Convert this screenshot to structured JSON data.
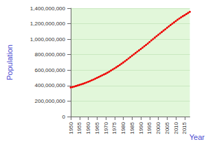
{
  "chart_data": {
    "type": "line",
    "x_label": "Year",
    "y_label": "Population",
    "x": [
      1950,
      1951,
      1952,
      1953,
      1954,
      1955,
      1956,
      1957,
      1958,
      1959,
      1960,
      1961,
      1962,
      1963,
      1964,
      1965,
      1966,
      1967,
      1968,
      1969,
      1970,
      1971,
      1972,
      1973,
      1974,
      1975,
      1976,
      1977,
      1978,
      1979,
      1980,
      1981,
      1982,
      1983,
      1984,
      1985,
      1986,
      1987,
      1988,
      1989,
      1990,
      1991,
      1992,
      1993,
      1994,
      1995,
      1996,
      1997,
      1998,
      1999,
      2000,
      2001,
      2002,
      2003,
      2004,
      2005,
      2006,
      2007,
      2008,
      2009,
      2010,
      2011,
      2012,
      2013,
      2014,
      2015,
      2016,
      2017,
      2018
    ],
    "values": [
      376000000,
      382000000,
      388000000,
      395000000,
      402000000,
      409000000,
      417000000,
      424000000,
      432000000,
      441000000,
      450000000,
      459000000,
      469000000,
      479000000,
      490000000,
      500000000,
      511000000,
      522000000,
      533000000,
      544000000,
      555000000,
      568000000,
      581000000,
      595000000,
      609000000,
      623000000,
      637000000,
      652000000,
      667000000,
      683000000,
      699000000,
      716000000,
      733000000,
      751000000,
      768000000,
      786000000,
      804000000,
      821000000,
      839000000,
      856000000,
      873000000,
      891000000,
      908000000,
      926000000,
      944000000,
      964000000,
      983000000,
      1001000000,
      1020000000,
      1038000000,
      1057000000,
      1075000000,
      1093000000,
      1111000000,
      1128000000,
      1147000000,
      1165000000,
      1183000000,
      1200000000,
      1217000000,
      1234000000,
      1251000000,
      1267000000,
      1283000000,
      1297000000,
      1310000000,
      1324000000,
      1339000000,
      1353000000
    ],
    "color": "#ee0000",
    "marker": "circle",
    "xlim": [
      1950,
      2018
    ],
    "xticks": [
      1950,
      1955,
      1960,
      1965,
      1970,
      1975,
      1980,
      1985,
      1990,
      1995,
      2000,
      2005,
      2010,
      2015
    ],
    "ylim": [
      0,
      1400000000
    ],
    "yticks": [
      0,
      {
        "value": 200000000,
        "label": "200,000,000"
      },
      {
        "value": 400000000,
        "label": "400,000,000"
      },
      {
        "value": 600000000,
        "label": "600,000,000"
      },
      {
        "value": 800000000,
        "label": "800,000,000"
      },
      {
        "value": 1000000000,
        "label": "1,000,000,000"
      },
      {
        "value": 1200000000,
        "label": "1,200,000,000"
      },
      {
        "value": 1400000000,
        "label": "1,400,000,000"
      }
    ],
    "grid": true
  }
}
